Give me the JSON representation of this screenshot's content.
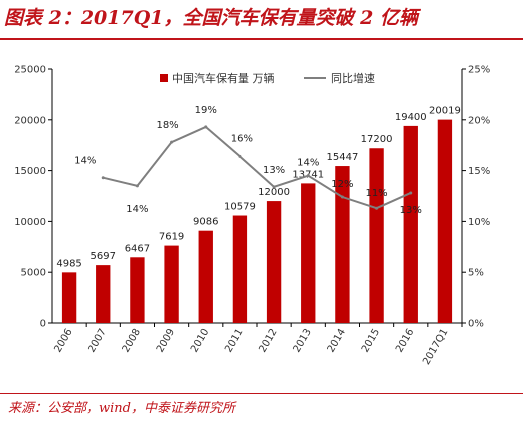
{
  "title": "图表 2：2017Q1，全国汽车保有量突破 2 亿辆",
  "source": "来源：公安部，wind，中泰证券研究所",
  "colors": {
    "accent": "#c0141a",
    "bar": "#c00000",
    "line": "#7f7f7f"
  },
  "chart_data": {
    "type": "bar",
    "categories": [
      "2006",
      "2007",
      "2008",
      "2009",
      "2010",
      "2011",
      "2012",
      "2013",
      "2014",
      "2015",
      "2016",
      "2017Q1"
    ],
    "series": [
      {
        "name": "中国汽车保有量 万辆",
        "type": "bar",
        "axis": "left",
        "values": [
          4985,
          5697,
          6467,
          7619,
          9086,
          10579,
          12000,
          13741,
          15447,
          17200,
          19400,
          20019
        ],
        "labels": [
          "4985",
          "5697",
          "6467",
          "7619",
          "9086",
          "10579",
          "12000",
          "13741",
          "15447",
          "17200",
          "19400",
          "20019"
        ]
      },
      {
        "name": "同比增速",
        "type": "line",
        "axis": "right",
        "x": [
          "2007",
          "2008",
          "2009",
          "2010",
          "2011",
          "2012",
          "2013",
          "2014",
          "2015",
          "2016"
        ],
        "values": [
          0.143,
          0.135,
          0.178,
          0.193,
          0.164,
          0.134,
          0.145,
          0.124,
          0.113,
          0.128
        ],
        "labels": [
          "14%",
          "14%",
          "18%",
          "19%",
          "16%",
          "13%",
          "14%",
          "12%",
          "11%",
          "13%"
        ]
      }
    ],
    "y_left": {
      "ticks": [
        "0",
        "5000",
        "10000",
        "15000",
        "20000",
        "25000"
      ],
      "range": [
        0,
        25000
      ]
    },
    "y_right": {
      "ticks": [
        "0%",
        "5%",
        "10%",
        "15%",
        "20%",
        "25%"
      ],
      "range": [
        0,
        0.25
      ]
    },
    "legend": "top",
    "grid": false
  }
}
